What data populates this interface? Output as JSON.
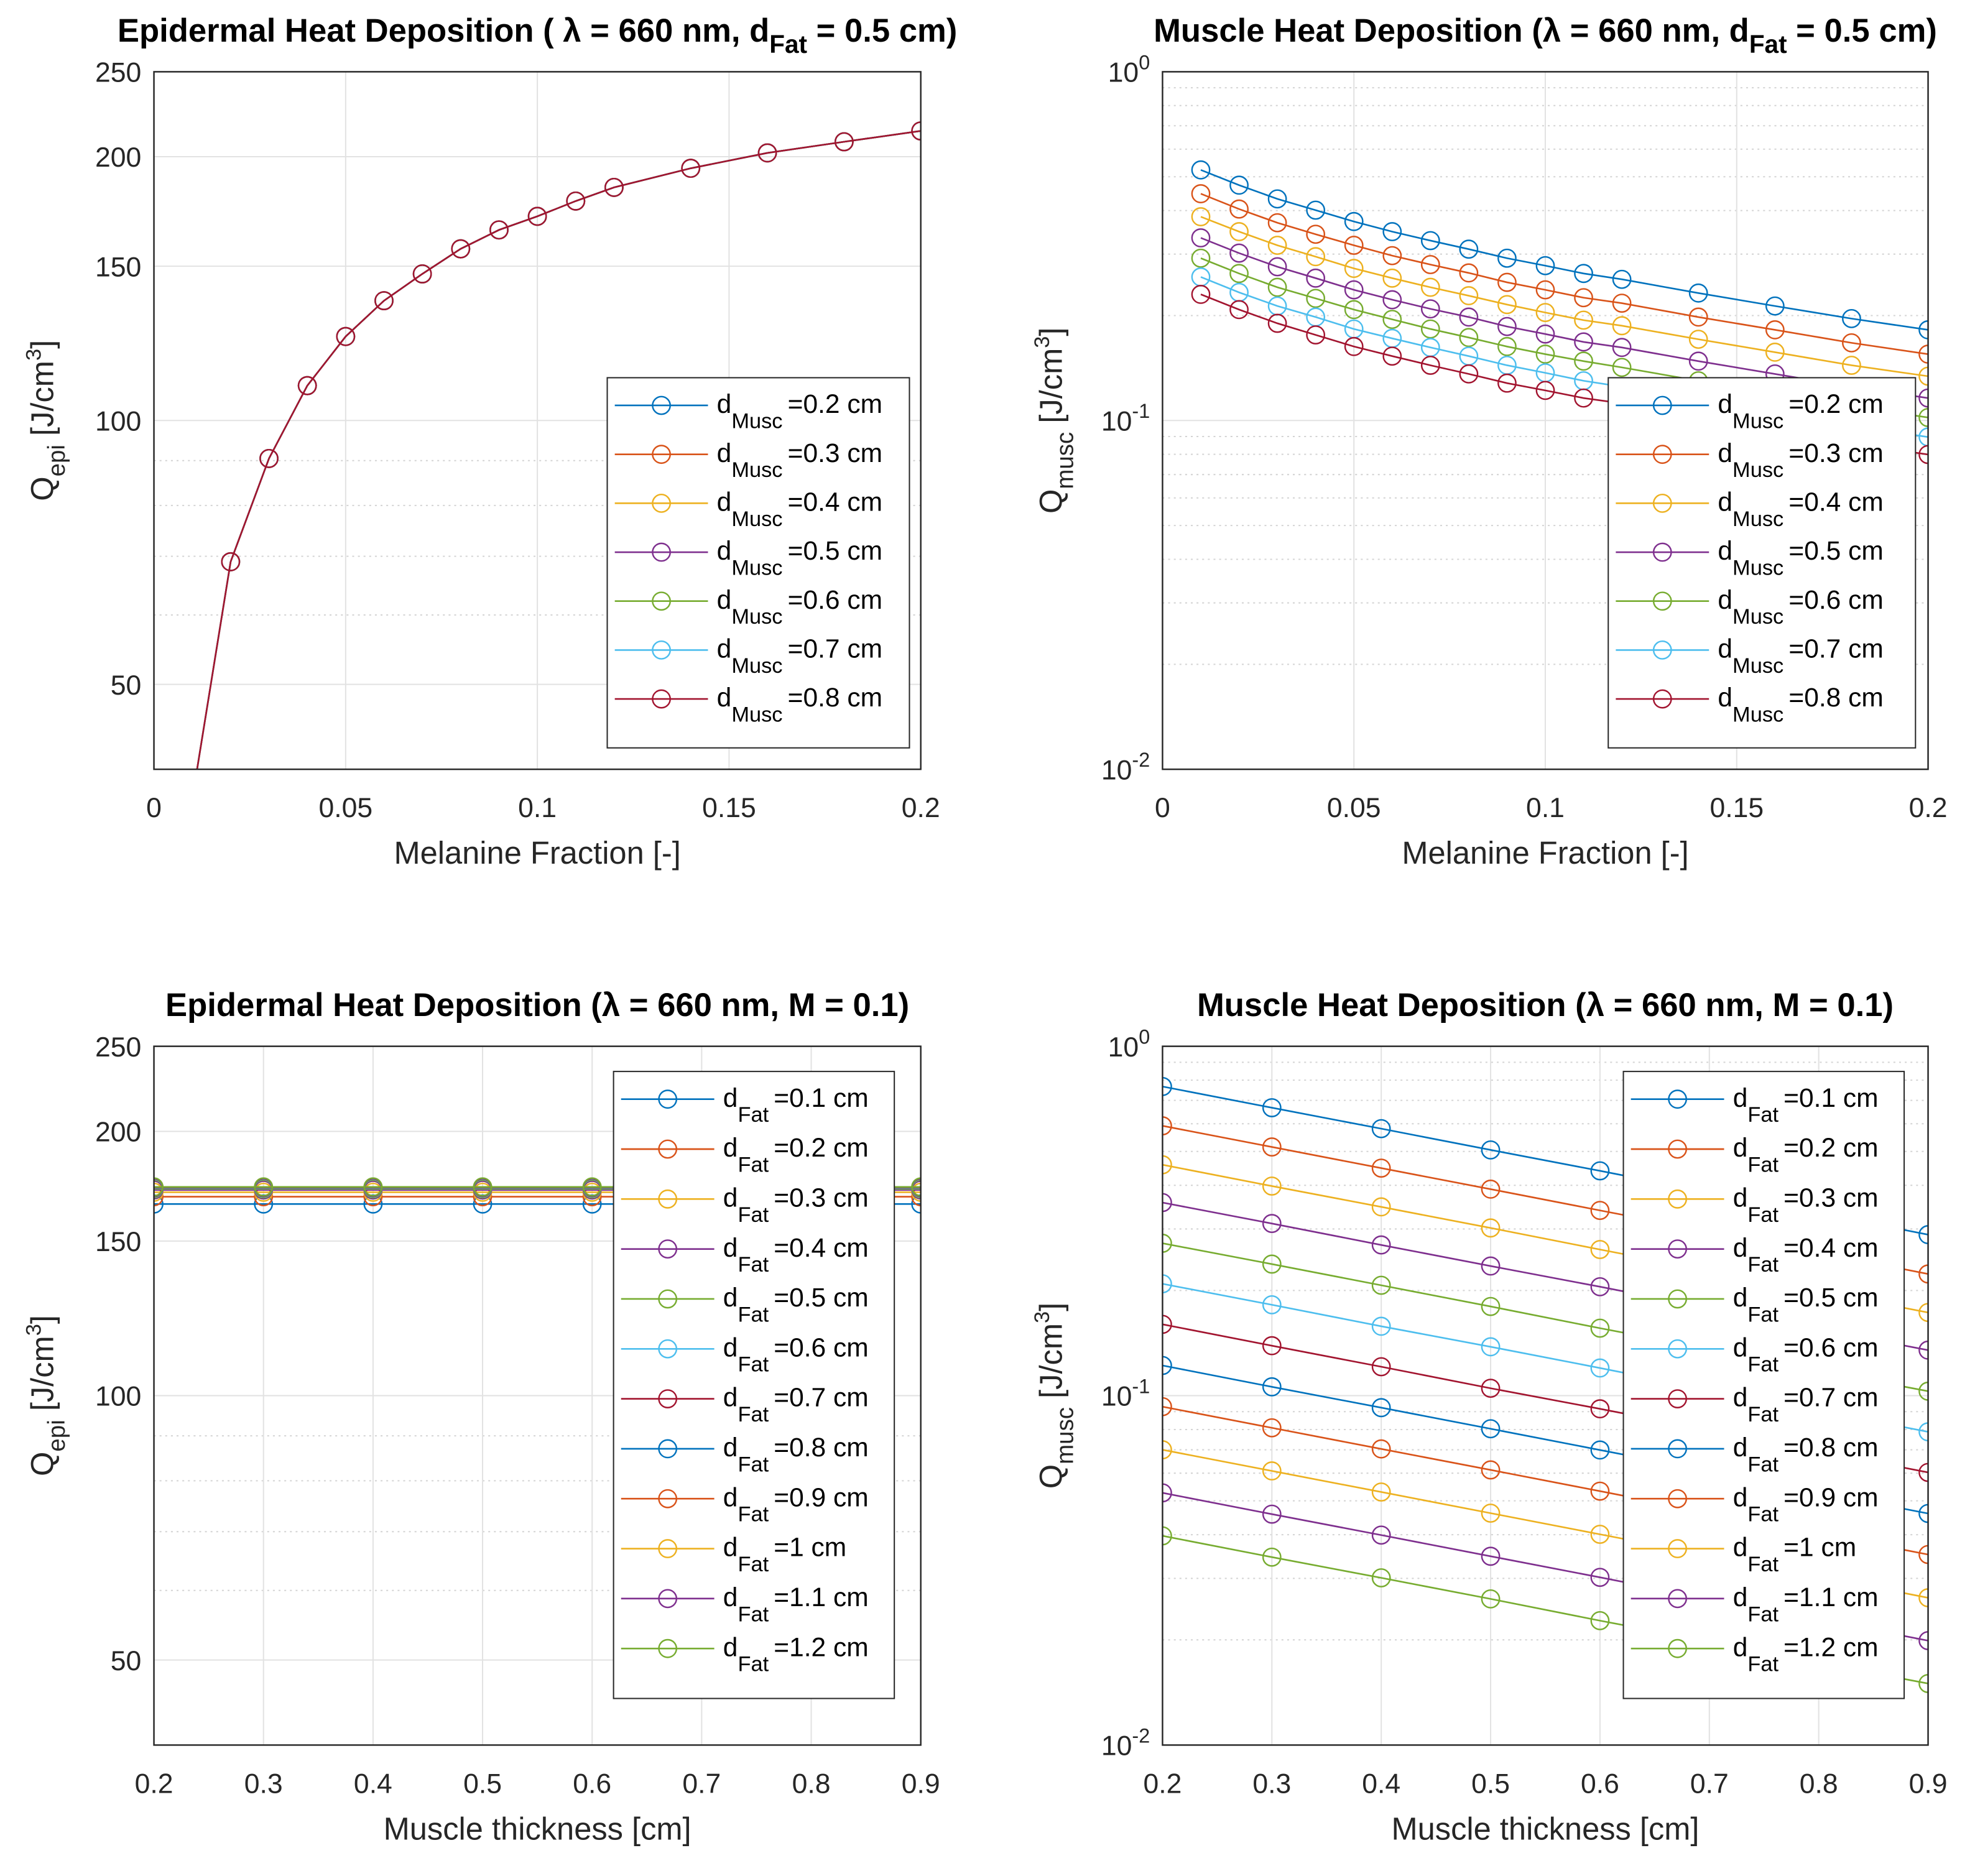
{
  "chart_data": [
    {
      "type": "line",
      "title": [
        "Epidermal Heat Deposition ( λ = 660 nm, d",
        "Fat",
        " = 0.5 cm)"
      ],
      "xlabel": "Melanine Fraction [-]",
      "ylabel": [
        "Q",
        "epi",
        " [J/cm",
        "3",
        "]"
      ],
      "xlim": [
        0,
        0.2
      ],
      "ylim": [
        40,
        250
      ],
      "yscale": "log",
      "grid": true,
      "legend": "southeast",
      "xticks": [
        0,
        0.05,
        0.1,
        0.15,
        0.2
      ],
      "xticklabels": [
        "0",
        "0.05",
        "0.1",
        "0.15",
        "0.2"
      ],
      "yticks": [
        50,
        100,
        150,
        200,
        250
      ],
      "yticklabels": [
        "50",
        "100",
        "150",
        "200",
        "250"
      ],
      "ytickexp": [
        "",
        "",
        "",
        "",
        ""
      ],
      "x": [
        0.01,
        0.02,
        0.03,
        0.04,
        0.05,
        0.06,
        0.07,
        0.08,
        0.09,
        0.1,
        0.11,
        0.12,
        0.14,
        0.16,
        0.18,
        0.2
      ],
      "series": [
        {
          "name": [
            "d",
            "Musc",
            "=0.2 cm"
          ],
          "color": "#0072BD",
          "y": [
            37,
            69,
            90.5,
            109.6,
            124.7,
            137,
            147,
            157,
            165,
            171,
            178,
            184.5,
            194,
            202,
            208,
            214
          ]
        },
        {
          "name": [
            "d",
            "Musc",
            "=0.3 cm"
          ],
          "color": "#D95319",
          "y": [
            37,
            69,
            90.5,
            109.6,
            124.7,
            137,
            147,
            157,
            165,
            171,
            178,
            184.5,
            194,
            202,
            208,
            214
          ]
        },
        {
          "name": [
            "d",
            "Musc",
            "=0.4 cm"
          ],
          "color": "#EDB120",
          "y": [
            37,
            69,
            90.5,
            109.6,
            124.7,
            137,
            147,
            157,
            165,
            171,
            178,
            184.5,
            194,
            202,
            208,
            214
          ]
        },
        {
          "name": [
            "d",
            "Musc",
            "=0.5 cm"
          ],
          "color": "#7E2F8E",
          "y": [
            37,
            69,
            90.5,
            109.6,
            124.7,
            137,
            147,
            157,
            165,
            171,
            178,
            184.5,
            194,
            202,
            208,
            214
          ]
        },
        {
          "name": [
            "d",
            "Musc",
            "=0.6 cm"
          ],
          "color": "#77AC30",
          "y": [
            37,
            69,
            90.5,
            109.6,
            124.7,
            137,
            147,
            157,
            165,
            171,
            178,
            184.5,
            194,
            202,
            208,
            214
          ]
        },
        {
          "name": [
            "d",
            "Musc",
            "=0.7 cm"
          ],
          "color": "#4DBEEE",
          "y": [
            37,
            69,
            90.5,
            109.6,
            124.7,
            137,
            147,
            157,
            165,
            171,
            178,
            184.5,
            194,
            202,
            208,
            214
          ]
        },
        {
          "name": [
            "d",
            "Musc",
            "=0.8 cm"
          ],
          "color": "#A2142F",
          "y": [
            37,
            69,
            90.5,
            109.6,
            124.7,
            137,
            147,
            157,
            165,
            171,
            178,
            184.5,
            194,
            202,
            208,
            214
          ]
        }
      ]
    },
    {
      "type": "line",
      "title": [
        "Muscle Heat Deposition (λ = 660 nm, d",
        "Fat",
        " = 0.5 cm)"
      ],
      "xlabel": "Melanine Fraction [-]",
      "ylabel": [
        "Q",
        "musc",
        " [J/cm",
        "3",
        "]"
      ],
      "xlim": [
        0,
        0.2
      ],
      "ylim": [
        0.01,
        1
      ],
      "yscale": "log",
      "grid": true,
      "legend": "east",
      "xticks": [
        0,
        0.05,
        0.1,
        0.15,
        0.2
      ],
      "xticklabels": [
        "0",
        "0.05",
        "0.1",
        "0.15",
        "0.2"
      ],
      "yticks": [
        0.01,
        0.1,
        1
      ],
      "yticklabels": [
        "10",
        "10",
        "10"
      ],
      "ytickexp": [
        "-2",
        "-1",
        "0"
      ],
      "x": [
        0.01,
        0.02,
        0.03,
        0.04,
        0.05,
        0.06,
        0.07,
        0.08,
        0.09,
        0.1,
        0.11,
        0.12,
        0.14,
        0.16,
        0.18,
        0.2
      ],
      "series": [
        {
          "name": [
            "d",
            "Musc",
            "=0.2 cm"
          ],
          "color": "#0072BD",
          "y": [
            0.523,
            0.473,
            0.432,
            0.401,
            0.372,
            0.348,
            0.328,
            0.31,
            0.292,
            0.278,
            0.264,
            0.254,
            0.232,
            0.213,
            0.196,
            0.182
          ]
        },
        {
          "name": [
            "d",
            "Musc",
            "=0.3 cm"
          ],
          "color": "#D95319",
          "y": [
            0.447,
            0.404,
            0.369,
            0.342,
            0.318,
            0.297,
            0.28,
            0.265,
            0.249,
            0.237,
            0.225,
            0.217,
            0.198,
            0.182,
            0.167,
            0.155
          ]
        },
        {
          "name": [
            "d",
            "Musc",
            "=0.4 cm"
          ],
          "color": "#EDB120",
          "y": [
            0.384,
            0.348,
            0.318,
            0.295,
            0.273,
            0.256,
            0.241,
            0.228,
            0.215,
            0.204,
            0.194,
            0.187,
            0.171,
            0.157,
            0.144,
            0.134
          ]
        },
        {
          "name": [
            "d",
            "Musc",
            "=0.5 cm"
          ],
          "color": "#7E2F8E",
          "y": [
            0.334,
            0.302,
            0.276,
            0.256,
            0.237,
            0.222,
            0.209,
            0.198,
            0.186,
            0.177,
            0.168,
            0.162,
            0.148,
            0.136,
            0.125,
            0.116
          ]
        },
        {
          "name": [
            "d",
            "Musc",
            "=0.6 cm"
          ],
          "color": "#77AC30",
          "y": [
            0.292,
            0.264,
            0.241,
            0.224,
            0.208,
            0.195,
            0.183,
            0.173,
            0.163,
            0.155,
            0.148,
            0.142,
            0.13,
            0.119,
            0.11,
            0.102
          ]
        },
        {
          "name": [
            "d",
            "Musc",
            "=0.7 cm"
          ],
          "color": "#4DBEEE",
          "y": [
            0.258,
            0.233,
            0.213,
            0.198,
            0.183,
            0.172,
            0.162,
            0.153,
            0.144,
            0.137,
            0.13,
            0.125,
            0.114,
            0.105,
            0.0966,
            0.0897
          ]
        },
        {
          "name": [
            "d",
            "Musc",
            "=0.8 cm"
          ],
          "color": "#A2142F",
          "y": [
            0.23,
            0.208,
            0.19,
            0.176,
            0.163,
            0.153,
            0.144,
            0.136,
            0.128,
            0.122,
            0.116,
            0.112,
            0.102,
            0.0935,
            0.086,
            0.0799
          ]
        }
      ]
    },
    {
      "type": "line",
      "title": [
        "Epidermal Heat Deposition (λ = 660 nm, M = 0.1)",
        "",
        ""
      ],
      "xlabel": "Muscle thickness [cm]",
      "ylabel": [
        "Q",
        "epi",
        " [J/cm",
        "3",
        "]"
      ],
      "xlim": [
        0.2,
        0.9
      ],
      "ylim": [
        40,
        250
      ],
      "yscale": "log",
      "grid": true,
      "legend": "northeast",
      "xticks": [
        0.2,
        0.3,
        0.4,
        0.5,
        0.6,
        0.7,
        0.8,
        0.9
      ],
      "xticklabels": [
        "0.2",
        "0.3",
        "0.4",
        "0.5",
        "0.6",
        "0.7",
        "0.8",
        "0.9"
      ],
      "yticks": [
        50,
        100,
        150,
        200,
        250
      ],
      "yticklabels": [
        "50",
        "100",
        "150",
        "200",
        "250"
      ],
      "ytickexp": [
        "",
        "",
        "",
        "",
        ""
      ],
      "x": [
        0.2,
        0.3,
        0.4,
        0.5,
        0.6,
        0.7,
        0.8,
        0.9
      ],
      "series": [
        {
          "name": [
            "d",
            "Fat",
            "=0.1 cm"
          ],
          "color": "#0072BD",
          "y": [
            165.3,
            165.3,
            165.3,
            165.3,
            165.3,
            165.3,
            165.3,
            165.3
          ]
        },
        {
          "name": [
            "d",
            "Fat",
            "=0.2 cm"
          ],
          "color": "#D95319",
          "y": [
            168.5,
            168.5,
            168.5,
            168.5,
            168.5,
            168.5,
            168.5,
            168.5
          ]
        },
        {
          "name": [
            "d",
            "Fat",
            "=0.3 cm"
          ],
          "color": "#EDB120",
          "y": [
            170.5,
            170.5,
            170.5,
            170.5,
            170.5,
            170.5,
            170.5,
            170.5
          ]
        },
        {
          "name": [
            "d",
            "Fat",
            "=0.4 cm"
          ],
          "color": "#7E2F8E",
          "y": [
            171.5,
            171.5,
            171.5,
            171.5,
            171.5,
            171.5,
            171.5,
            171.5
          ]
        },
        {
          "name": [
            "d",
            "Fat",
            "=0.5 cm"
          ],
          "color": "#77AC30",
          "y": [
            172,
            172,
            172,
            172,
            172,
            172,
            172,
            172
          ]
        },
        {
          "name": [
            "d",
            "Fat",
            "=0.6 cm"
          ],
          "color": "#4DBEEE",
          "y": [
            172.3,
            172.3,
            172.3,
            172.3,
            172.3,
            172.3,
            172.3,
            172.3
          ]
        },
        {
          "name": [
            "d",
            "Fat",
            "=0.7 cm"
          ],
          "color": "#A2142F",
          "y": [
            172.5,
            172.5,
            172.5,
            172.5,
            172.5,
            172.5,
            172.5,
            172.5
          ]
        },
        {
          "name": [
            "d",
            "Fat",
            "=0.8 cm"
          ],
          "color": "#0072BD",
          "y": [
            172.6,
            172.6,
            172.6,
            172.6,
            172.6,
            172.6,
            172.6,
            172.6
          ]
        },
        {
          "name": [
            "d",
            "Fat",
            "=0.9 cm"
          ],
          "color": "#D95319",
          "y": [
            172.7,
            172.7,
            172.7,
            172.7,
            172.7,
            172.7,
            172.7,
            172.7
          ]
        },
        {
          "name": [
            "d",
            "Fat",
            "=1 cm"
          ],
          "color": "#EDB120",
          "y": [
            172.8,
            172.8,
            172.8,
            172.8,
            172.8,
            172.8,
            172.8,
            172.8
          ]
        },
        {
          "name": [
            "d",
            "Fat",
            "=1.1 cm"
          ],
          "color": "#7E2F8E",
          "y": [
            172.8,
            172.8,
            172.8,
            172.8,
            172.8,
            172.8,
            172.8,
            172.8
          ]
        },
        {
          "name": [
            "d",
            "Fat",
            "=1.2 cm"
          ],
          "color": "#77AC30",
          "y": [
            172.9,
            172.9,
            172.9,
            172.9,
            172.9,
            172.9,
            172.9,
            172.9
          ]
        }
      ]
    },
    {
      "type": "line",
      "title": [
        "Muscle Heat Deposition (λ = 660 nm, M = 0.1)",
        "",
        ""
      ],
      "xlabel": "Muscle thickness [cm]",
      "ylabel": [
        "Q",
        "musc",
        " [J/cm",
        "3",
        "]"
      ],
      "xlim": [
        0.2,
        0.9
      ],
      "ylim": [
        0.01,
        1
      ],
      "yscale": "log",
      "grid": true,
      "legend": "northeast",
      "xticks": [
        0.2,
        0.3,
        0.4,
        0.5,
        0.6,
        0.7,
        0.8,
        0.9
      ],
      "xticklabels": [
        "0.2",
        "0.3",
        "0.4",
        "0.5",
        "0.6",
        "0.7",
        "0.8",
        "0.9"
      ],
      "yticks": [
        0.01,
        0.1,
        1
      ],
      "yticklabels": [
        "10",
        "10",
        "10"
      ],
      "ytickexp": [
        "-2",
        "-1",
        "0"
      ],
      "x": [
        0.2,
        0.3,
        0.4,
        0.5,
        0.6,
        0.7,
        0.8,
        0.9
      ],
      "series": [
        {
          "name": [
            "d",
            "Fat",
            "=0.1 cm"
          ],
          "color": "#0072BD",
          "y": [
            0.767,
            0.667,
            0.581,
            0.505,
            0.44,
            0.382,
            0.333,
            0.289
          ]
        },
        {
          "name": [
            "d",
            "Fat",
            "=0.2 cm"
          ],
          "color": "#D95319",
          "y": [
            0.592,
            0.515,
            0.448,
            0.39,
            0.339,
            0.295,
            0.257,
            0.223
          ]
        },
        {
          "name": [
            "d",
            "Fat",
            "=0.3 cm"
          ],
          "color": "#EDB120",
          "y": [
            0.458,
            0.398,
            0.347,
            0.302,
            0.262,
            0.228,
            0.199,
            0.173
          ]
        },
        {
          "name": [
            "d",
            "Fat",
            "=0.4 cm"
          ],
          "color": "#7E2F8E",
          "y": [
            0.357,
            0.311,
            0.27,
            0.235,
            0.205,
            0.178,
            0.155,
            0.135
          ]
        },
        {
          "name": [
            "d",
            "Fat",
            "=0.5 cm"
          ],
          "color": "#77AC30",
          "y": [
            0.273,
            0.238,
            0.207,
            0.18,
            0.156,
            0.136,
            0.118,
            0.103
          ]
        },
        {
          "name": [
            "d",
            "Fat",
            "=0.6 cm"
          ],
          "color": "#4DBEEE",
          "y": [
            0.209,
            0.182,
            0.158,
            0.138,
            0.12,
            0.104,
            0.0907,
            0.0788
          ]
        },
        {
          "name": [
            "d",
            "Fat",
            "=0.7 cm"
          ],
          "color": "#A2142F",
          "y": [
            0.16,
            0.139,
            0.121,
            0.105,
            0.0917,
            0.0797,
            0.0694,
            0.0603
          ]
        },
        {
          "name": [
            "d",
            "Fat",
            "=0.8 cm"
          ],
          "color": "#0072BD",
          "y": [
            0.122,
            0.106,
            0.0924,
            0.0804,
            0.0699,
            0.0608,
            0.0529,
            0.046
          ]
        },
        {
          "name": [
            "d",
            "Fat",
            "=0.9 cm"
          ],
          "color": "#D95319",
          "y": [
            0.093,
            0.0809,
            0.0704,
            0.0613,
            0.0533,
            0.0463,
            0.0404,
            0.0351
          ]
        },
        {
          "name": [
            "d",
            "Fat",
            "=1 cm"
          ],
          "color": "#EDB120",
          "y": [
            0.07,
            0.0609,
            0.053,
            0.0461,
            0.0401,
            0.0349,
            0.0304,
            0.0264
          ]
        },
        {
          "name": [
            "d",
            "Fat",
            "=1.1 cm"
          ],
          "color": "#7E2F8E",
          "y": [
            0.0527,
            0.0458,
            0.0399,
            0.0347,
            0.0302,
            0.0262,
            0.0229,
            0.0199
          ]
        },
        {
          "name": [
            "d",
            "Fat",
            "=1.2 cm"
          ],
          "color": "#77AC30",
          "y": [
            0.0397,
            0.0345,
            0.0301,
            0.0262,
            0.0227,
            0.0198,
            0.0172,
            0.015
          ]
        }
      ]
    }
  ]
}
